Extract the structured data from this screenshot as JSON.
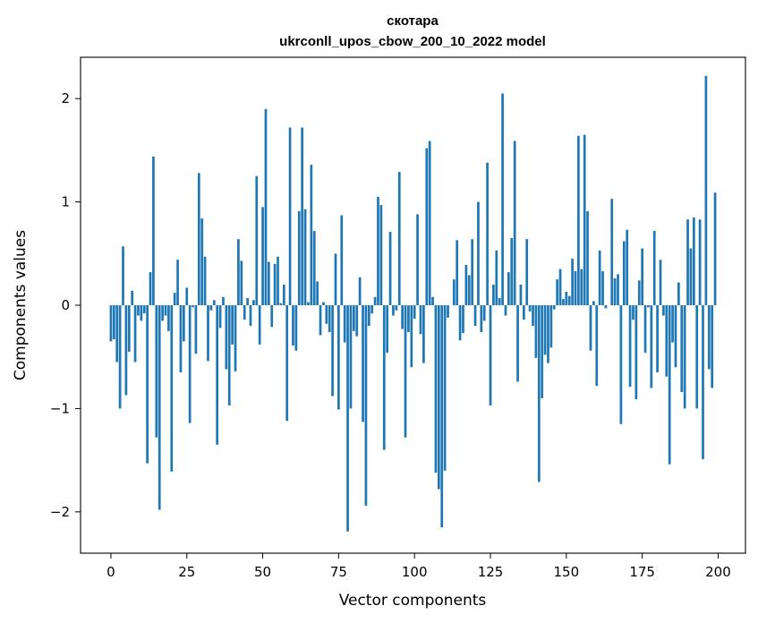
{
  "chart_data": {
    "type": "bar",
    "title": "скотара",
    "subtitle": "ukrconll_upos_cbow_200_10_2022 model",
    "xlabel": "Vector components",
    "ylabel": "Components values",
    "xlim": [
      -10,
      209
    ],
    "ylim": [
      -2.4,
      2.4
    ],
    "xticks": [
      0,
      25,
      50,
      75,
      100,
      125,
      150,
      175,
      200
    ],
    "yticks": [
      -2,
      -1,
      0,
      1,
      2
    ],
    "ytick_labels": [
      "−2",
      "−1",
      "0",
      "1",
      "2"
    ],
    "bar_color": "#1f77b4",
    "grid": false,
    "legend": "none",
    "x": [
      0,
      1,
      2,
      3,
      4,
      5,
      6,
      7,
      8,
      9,
      10,
      11,
      12,
      13,
      14,
      15,
      16,
      17,
      18,
      19,
      20,
      21,
      22,
      23,
      24,
      25,
      26,
      27,
      28,
      29,
      30,
      31,
      32,
      33,
      34,
      35,
      36,
      37,
      38,
      39,
      40,
      41,
      42,
      43,
      44,
      45,
      46,
      47,
      48,
      49,
      50,
      51,
      52,
      53,
      54,
      55,
      56,
      57,
      58,
      59,
      60,
      61,
      62,
      63,
      64,
      65,
      66,
      67,
      68,
      69,
      70,
      71,
      72,
      73,
      74,
      75,
      76,
      77,
      78,
      79,
      80,
      81,
      82,
      83,
      84,
      85,
      86,
      87,
      88,
      89,
      90,
      91,
      92,
      93,
      94,
      95,
      96,
      97,
      98,
      99,
      100,
      101,
      102,
      103,
      104,
      105,
      106,
      107,
      108,
      109,
      110,
      111,
      112,
      113,
      114,
      115,
      116,
      117,
      118,
      119,
      120,
      121,
      122,
      123,
      124,
      125,
      126,
      127,
      128,
      129,
      130,
      131,
      132,
      133,
      134,
      135,
      136,
      137,
      138,
      139,
      140,
      141,
      142,
      143,
      144,
      145,
      146,
      147,
      148,
      149,
      150,
      151,
      152,
      153,
      154,
      155,
      156,
      157,
      158,
      159,
      160,
      161,
      162,
      163,
      164,
      165,
      166,
      167,
      168,
      169,
      170,
      171,
      172,
      173,
      174,
      175,
      176,
      177,
      178,
      179,
      180,
      181,
      182,
      183,
      184,
      185,
      186,
      187,
      188,
      189,
      190,
      191,
      192,
      193,
      194,
      195,
      196,
      197,
      198,
      199
    ],
    "values": [
      -0.35,
      -0.33,
      -0.55,
      -1.0,
      0.57,
      -0.87,
      -0.45,
      0.14,
      -0.55,
      -0.1,
      -0.15,
      -0.08,
      -1.53,
      0.32,
      1.44,
      -1.28,
      -1.98,
      -0.15,
      -0.1,
      -0.25,
      -1.61,
      0.12,
      0.44,
      -0.65,
      -0.35,
      0.17,
      -1.14,
      -0.02,
      -0.47,
      1.28,
      0.84,
      0.47,
      -0.54,
      -0.05,
      0.05,
      -1.35,
      -0.22,
      0.08,
      -0.62,
      -0.97,
      -0.38,
      -0.64,
      0.64,
      0.43,
      -0.14,
      0.07,
      -0.2,
      0.05,
      1.25,
      -0.38,
      0.95,
      1.9,
      0.42,
      -0.21,
      0.4,
      0.47,
      0.02,
      0.2,
      -1.12,
      1.72,
      -0.39,
      -0.44,
      0.91,
      1.72,
      0.93,
      0.03,
      1.36,
      0.72,
      0.23,
      -0.29,
      0.03,
      -0.18,
      -0.26,
      -0.88,
      0.5,
      -1.01,
      0.87,
      -0.36,
      -2.19,
      -1.0,
      -0.25,
      -0.3,
      0.27,
      -1.13,
      -1.94,
      -0.2,
      -0.08,
      0.08,
      1.05,
      0.97,
      -1.4,
      -0.46,
      0.71,
      -0.1,
      -0.05,
      1.29,
      -0.23,
      -1.28,
      -0.26,
      -0.6,
      -0.13,
      0.88,
      -0.28,
      -0.56,
      1.52,
      1.59,
      0.08,
      -1.62,
      -1.78,
      -2.15,
      -1.6,
      -0.12,
      0.0,
      0.25,
      0.63,
      -0.34,
      -0.27,
      0.39,
      0.29,
      0.64,
      -0.2,
      1.0,
      -0.26,
      -0.15,
      1.38,
      -0.97,
      0.2,
      0.53,
      0.07,
      2.05,
      -0.1,
      0.32,
      0.65,
      1.59,
      -0.74,
      0.2,
      -0.14,
      0.64,
      -0.06,
      -0.2,
      -0.51,
      -1.71,
      -0.9,
      -0.48,
      -0.56,
      -0.41,
      -0.04,
      0.25,
      0.35,
      0.06,
      0.13,
      0.09,
      0.45,
      0.33,
      1.64,
      0.35,
      1.65,
      0.91,
      -0.44,
      0.04,
      -0.78,
      0.53,
      0.33,
      -0.03,
      0.0,
      1.03,
      0.26,
      0.3,
      -1.15,
      0.62,
      0.73,
      -0.79,
      -0.14,
      -0.91,
      0.24,
      0.55,
      -0.46,
      -0.02,
      -0.8,
      0.72,
      -0.65,
      0.44,
      -0.1,
      -0.69,
      -1.54,
      -0.36,
      -0.6,
      0.22,
      -0.84,
      -1.0,
      0.83,
      0.55,
      0.85,
      -1.0,
      0.83,
      -1.49,
      2.22,
      -0.62,
      -0.8,
      1.09
    ]
  }
}
